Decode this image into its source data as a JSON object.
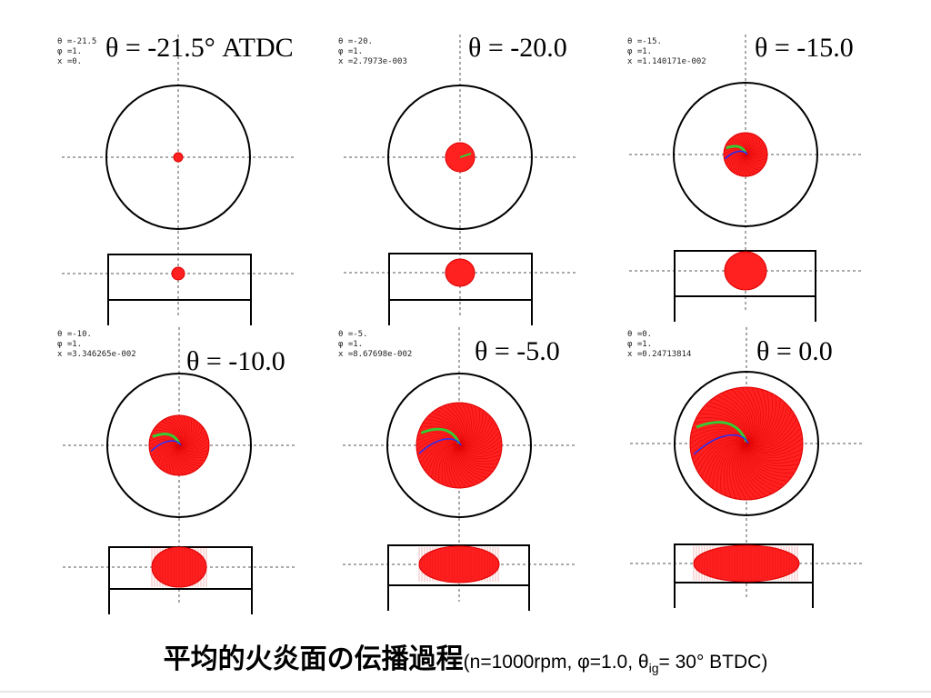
{
  "panels": [
    {
      "info": [
        "θ =-21.5",
        "φ =1.",
        "x =0."
      ],
      "label": "θ = -21.5°  ATDC",
      "flame_stage": 0
    },
    {
      "info": [
        "θ =-20.",
        "φ =1.",
        "x =2.7973e-003"
      ],
      "label": "θ = -20.0",
      "flame_stage": 1
    },
    {
      "info": [
        "θ =-15.",
        "φ =1.",
        "x =1.140171e-002"
      ],
      "label": "θ = -15.0",
      "flame_stage": 2
    },
    {
      "info": [
        "θ =-10.",
        "φ =1.",
        "x =3.346265e-002"
      ],
      "label": "θ = -10.0",
      "flame_stage": 3
    },
    {
      "info": [
        "θ =-5.",
        "φ =1.",
        "x =8.67698e-002"
      ],
      "label": "θ = -5.0",
      "flame_stage": 4
    },
    {
      "info": [
        "θ =0.",
        "φ =1.",
        "x =0.24713814"
      ],
      "label": "θ = 0.0",
      "flame_stage": 5
    }
  ],
  "caption": {
    "title_jp": "平均的火炎面の伝播過程",
    "params_prefix": "(n=1000rpm, φ=1.0,  θ",
    "params_sub": "ig",
    "params_suffix": "= 30°  BTDC)"
  },
  "colors": {
    "flame": "#ff2020",
    "flame_line": "#dd0000",
    "cylinder": "#000000",
    "axis": "#555555",
    "green_trace": "#33cc33",
    "blue_trace": "#2233ff"
  }
}
